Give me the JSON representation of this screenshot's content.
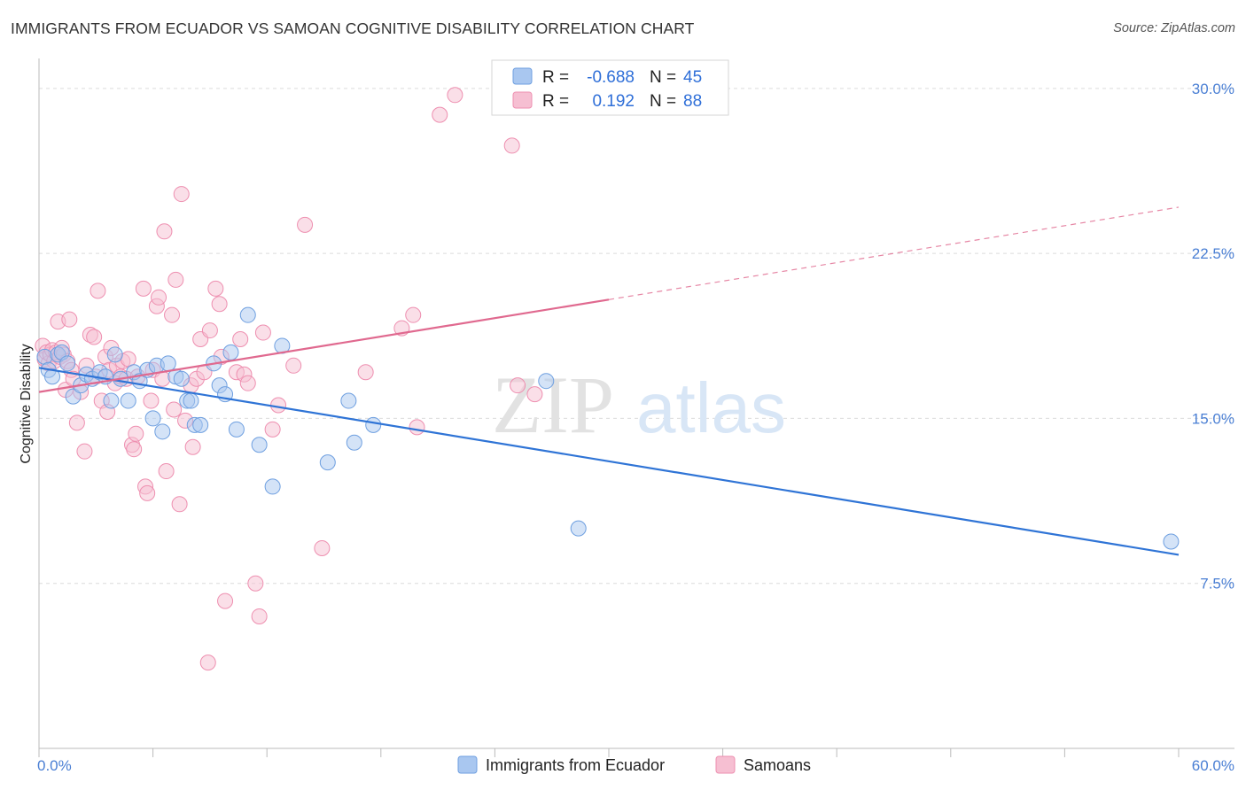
{
  "title": "IMMIGRANTS FROM ECUADOR VS SAMOAN COGNITIVE DISABILITY CORRELATION CHART",
  "source": "Source: ZipAtlas.com",
  "watermark": {
    "zip": "ZIP",
    "atlas": "atlas"
  },
  "colors": {
    "blue_fill": "#a9c7f0",
    "blue_stroke": "#6e9fe0",
    "blue_line": "#2f74d6",
    "pink_fill": "#f6bfd2",
    "pink_stroke": "#ee8fb0",
    "pink_line": "#e0698f"
  },
  "legend": {
    "r_label": "R =",
    "n_label": "N =",
    "rows": [
      {
        "series": "blue",
        "r": "-0.688",
        "n": "45"
      },
      {
        "series": "pink",
        "r": "0.192",
        "n": "88"
      }
    ]
  },
  "bottom_legend": [
    {
      "series": "blue",
      "label": "Immigrants from Ecuador"
    },
    {
      "series": "pink",
      "label": "Samoans"
    }
  ],
  "chart_data": {
    "type": "scatter",
    "title": "IMMIGRANTS FROM ECUADOR VS SAMOAN COGNITIVE DISABILITY CORRELATION CHART",
    "ylabel": "Cognitive Disability",
    "xlabel": "",
    "xlim": [
      0,
      60
    ],
    "ylim": [
      0,
      31
    ],
    "x_tick_labels": [
      "0.0%",
      "60.0%"
    ],
    "y_ticks": [
      7.5,
      15.0,
      22.5,
      30.0
    ],
    "y_tick_labels": [
      "7.5%",
      "15.0%",
      "22.5%",
      "30.0%"
    ],
    "grid": true,
    "legend_position": "top-center",
    "series": [
      {
        "name": "Immigrants from Ecuador",
        "color": "#6e9fe0",
        "r": -0.688,
        "n": 45,
        "trend": {
          "x": [
            0,
            60
          ],
          "y": [
            17.3,
            8.8
          ]
        },
        "points": [
          [
            0.3,
            17.8
          ],
          [
            0.5,
            17.2
          ],
          [
            0.7,
            16.9
          ],
          [
            1.0,
            17.9
          ],
          [
            1.2,
            18.0
          ],
          [
            1.5,
            17.5
          ],
          [
            1.8,
            16.0
          ],
          [
            2.2,
            16.5
          ],
          [
            2.5,
            17.0
          ],
          [
            2.8,
            16.8
          ],
          [
            3.2,
            17.1
          ],
          [
            3.5,
            16.9
          ],
          [
            3.8,
            15.8
          ],
          [
            4.0,
            17.9
          ],
          [
            4.3,
            16.8
          ],
          [
            4.7,
            15.8
          ],
          [
            5.0,
            17.1
          ],
          [
            5.3,
            16.7
          ],
          [
            5.7,
            17.2
          ],
          [
            6.0,
            15.0
          ],
          [
            6.2,
            17.4
          ],
          [
            6.5,
            14.4
          ],
          [
            6.8,
            17.5
          ],
          [
            7.2,
            16.9
          ],
          [
            7.5,
            16.8
          ],
          [
            7.8,
            15.8
          ],
          [
            8.0,
            15.8
          ],
          [
            8.2,
            14.7
          ],
          [
            8.5,
            14.7
          ],
          [
            9.2,
            17.5
          ],
          [
            9.5,
            16.5
          ],
          [
            9.8,
            16.1
          ],
          [
            10.1,
            18.0
          ],
          [
            10.4,
            14.5
          ],
          [
            11.0,
            19.7
          ],
          [
            11.6,
            13.8
          ],
          [
            12.3,
            11.9
          ],
          [
            12.8,
            18.3
          ],
          [
            15.2,
            13.0
          ],
          [
            16.3,
            15.8
          ],
          [
            16.6,
            13.9
          ],
          [
            17.6,
            14.7
          ],
          [
            26.7,
            16.7
          ],
          [
            28.4,
            10.0
          ],
          [
            59.6,
            9.4
          ]
        ]
      },
      {
        "name": "Samoans",
        "color": "#ee8fb0",
        "r": 0.192,
        "n": 88,
        "trend": {
          "x": [
            0,
            30
          ],
          "y": [
            16.2,
            20.4
          ]
        },
        "trend_extension": {
          "x": [
            30,
            60
          ],
          "y": [
            20.4,
            24.6
          ]
        },
        "points": [
          [
            0.2,
            18.3
          ],
          [
            0.3,
            17.7
          ],
          [
            0.4,
            18.0
          ],
          [
            0.5,
            17.5
          ],
          [
            0.6,
            17.9
          ],
          [
            0.7,
            18.1
          ],
          [
            0.8,
            17.6
          ],
          [
            0.9,
            18.0
          ],
          [
            1.0,
            19.4
          ],
          [
            1.1,
            17.8
          ],
          [
            1.2,
            18.2
          ],
          [
            1.3,
            17.9
          ],
          [
            1.4,
            16.3
          ],
          [
            1.5,
            17.6
          ],
          [
            1.6,
            19.5
          ],
          [
            1.7,
            17.2
          ],
          [
            1.8,
            16.8
          ],
          [
            2.0,
            14.8
          ],
          [
            2.2,
            16.2
          ],
          [
            2.4,
            13.5
          ],
          [
            2.5,
            17.4
          ],
          [
            2.7,
            18.8
          ],
          [
            2.9,
            18.7
          ],
          [
            3.0,
            16.9
          ],
          [
            3.1,
            20.8
          ],
          [
            3.3,
            15.8
          ],
          [
            3.5,
            17.8
          ],
          [
            3.6,
            15.3
          ],
          [
            3.7,
            17.2
          ],
          [
            3.8,
            18.2
          ],
          [
            4.0,
            16.6
          ],
          [
            4.1,
            17.4
          ],
          [
            4.3,
            16.9
          ],
          [
            4.4,
            17.6
          ],
          [
            4.6,
            16.8
          ],
          [
            4.7,
            17.7
          ],
          [
            4.9,
            13.8
          ],
          [
            5.0,
            13.6
          ],
          [
            5.1,
            14.3
          ],
          [
            5.2,
            16.9
          ],
          [
            5.5,
            20.9
          ],
          [
            5.6,
            11.9
          ],
          [
            5.7,
            11.6
          ],
          [
            5.9,
            15.8
          ],
          [
            6.0,
            17.2
          ],
          [
            6.2,
            20.1
          ],
          [
            6.3,
            20.5
          ],
          [
            6.5,
            16.8
          ],
          [
            6.6,
            23.5
          ],
          [
            6.7,
            12.6
          ],
          [
            7.0,
            19.7
          ],
          [
            7.1,
            15.4
          ],
          [
            7.2,
            21.3
          ],
          [
            7.4,
            11.1
          ],
          [
            7.5,
            25.2
          ],
          [
            7.7,
            14.9
          ],
          [
            8.0,
            16.5
          ],
          [
            8.1,
            13.7
          ],
          [
            8.3,
            16.8
          ],
          [
            8.5,
            18.6
          ],
          [
            8.7,
            17.1
          ],
          [
            8.9,
            3.9
          ],
          [
            9.0,
            19.0
          ],
          [
            9.3,
            20.9
          ],
          [
            9.5,
            20.2
          ],
          [
            9.6,
            17.8
          ],
          [
            9.8,
            6.7
          ],
          [
            10.4,
            17.1
          ],
          [
            10.6,
            18.6
          ],
          [
            10.8,
            17.0
          ],
          [
            11.0,
            16.6
          ],
          [
            11.4,
            7.5
          ],
          [
            11.6,
            6.0
          ],
          [
            11.8,
            18.9
          ],
          [
            12.3,
            14.5
          ],
          [
            12.6,
            15.6
          ],
          [
            13.4,
            17.4
          ],
          [
            14.0,
            23.8
          ],
          [
            14.9,
            9.1
          ],
          [
            17.2,
            17.1
          ],
          [
            19.1,
            19.1
          ],
          [
            19.7,
            19.7
          ],
          [
            19.9,
            14.6
          ],
          [
            21.1,
            28.8
          ],
          [
            21.9,
            29.7
          ],
          [
            24.9,
            27.4
          ],
          [
            25.2,
            16.5
          ],
          [
            26.1,
            16.1
          ]
        ]
      }
    ]
  }
}
